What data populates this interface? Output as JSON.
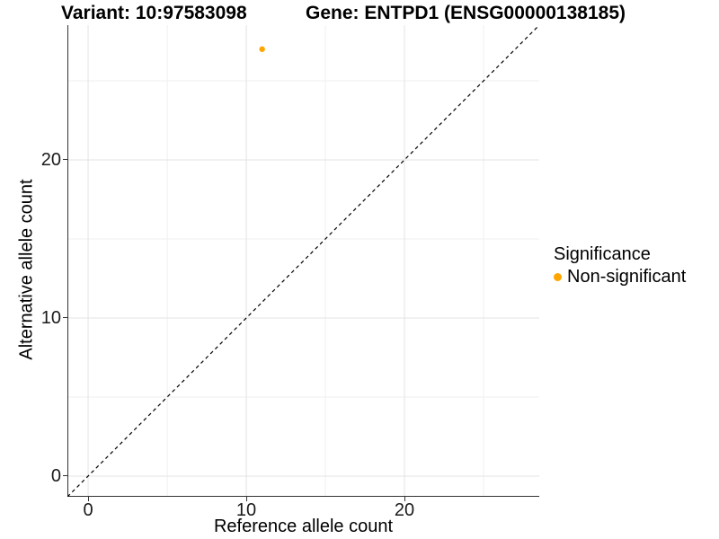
{
  "titles": {
    "variant": "Variant: 10:97583098",
    "gene": "Gene: ENTPD1 (ENSG00000138185)"
  },
  "legend": {
    "title": "Significance",
    "items": [
      {
        "label": "Non-significant",
        "color": "#FFA500"
      }
    ]
  },
  "chart_data": {
    "type": "scatter",
    "title": "Variant: 10:97583098 — Gene: ENTPD1 (ENSG00000138185)",
    "xlabel": "Reference allele count",
    "ylabel": "Alternative allele count",
    "xlim": [
      -1.31,
      28.52
    ],
    "ylim": [
      -1.31,
      28.52
    ],
    "x_major_ticks": [
      0,
      10,
      20
    ],
    "y_major_ticks": [
      0,
      10,
      20
    ],
    "x_minor_ticks": [
      5,
      15,
      25
    ],
    "y_minor_ticks": [
      5,
      15,
      25
    ],
    "grid": true,
    "legend_position": "right",
    "series": [
      {
        "name": "Non-significant",
        "color": "#FFA500",
        "points": [
          {
            "x": 11,
            "y": 27
          }
        ]
      }
    ],
    "reference_line": {
      "type": "identity",
      "slope": 1,
      "intercept": 0,
      "style": "dashed",
      "color": "#000000"
    }
  },
  "colors": {
    "background": "#FFFFFF",
    "axis_line": "#333333",
    "grid_major": "#E3E3E3",
    "grid_minor": "#EFEFEF",
    "tick_text": "#1A1A1A",
    "point": "#FFA500"
  }
}
